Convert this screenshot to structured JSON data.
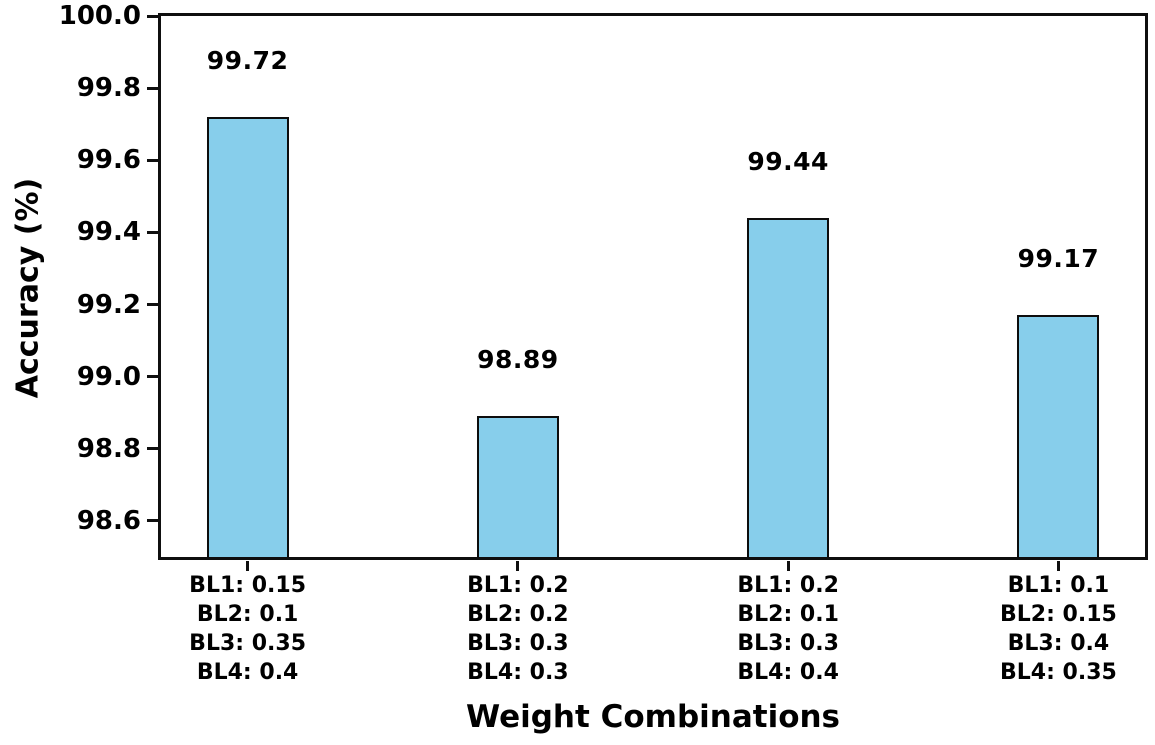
{
  "chart_data": {
    "type": "bar",
    "title": "",
    "xlabel": "Weight Combinations",
    "ylabel": "Accuracy (%)",
    "categories": [
      [
        "BL1: 0.15",
        "BL2: 0.1",
        "BL3: 0.35",
        "BL4: 0.4"
      ],
      [
        "BL1: 0.2",
        "BL2: 0.2",
        "BL3: 0.3",
        "BL4: 0.3"
      ],
      [
        "BL1: 0.2",
        "BL2: 0.1",
        "BL3: 0.3",
        "BL4: 0.4"
      ],
      [
        "BL1: 0.1",
        "BL2: 0.15",
        "BL3: 0.4",
        "BL4: 0.35"
      ]
    ],
    "values": [
      99.72,
      98.89,
      99.44,
      99.17
    ],
    "value_labels": [
      "99.72",
      "98.89",
      "99.44",
      "99.17"
    ],
    "ylim": [
      98.5,
      100.0
    ],
    "yticks": [
      100.0,
      99.8,
      99.6,
      99.4,
      99.2,
      99.0,
      98.8,
      98.6
    ],
    "ytick_labels": [
      "100.0",
      "99.8",
      "99.6",
      "99.4",
      "99.2",
      "99.0",
      "98.8",
      "98.6"
    ],
    "grid": false,
    "legend": null,
    "bar_color": "#87CEEB",
    "bar_edge_color": "#0d0d0d",
    "text_color": "#000000"
  }
}
